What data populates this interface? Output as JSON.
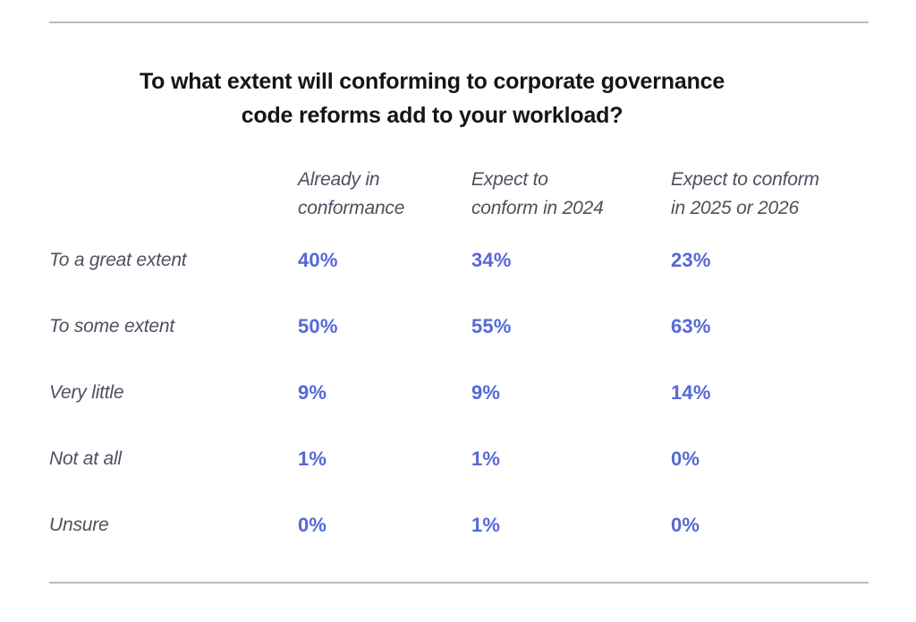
{
  "colors": {
    "accent": "#5568d6",
    "label_text": "#4b515e",
    "title_text": "#141519",
    "rule": "#b7bbc3",
    "background": "#ffffff"
  },
  "title": {
    "lines": [
      "To what extent will conforming to corporate governance",
      "code reforms add to your workload?"
    ]
  },
  "table": {
    "columns": [
      {
        "line1": "Already in",
        "line2": "conformance",
        "full": "Already in conformance"
      },
      {
        "line1": "Expect to",
        "line2": "conform in 2024",
        "full": "Expect to conform in 2024"
      },
      {
        "line1": "Expect to conform",
        "line2": "in 2025 or 2026",
        "full": "Expect to conform in 2025 or 2026"
      }
    ],
    "rows": [
      {
        "label": "To a great extent",
        "values": [
          "40%",
          "34%",
          "23%"
        ]
      },
      {
        "label": "To some extent",
        "values": [
          "50%",
          "55%",
          "63%"
        ]
      },
      {
        "label": "Very little",
        "values": [
          "9%",
          "9%",
          "14%"
        ]
      },
      {
        "label": "Not at all",
        "values": [
          "1%",
          "1%",
          "0%"
        ]
      },
      {
        "label": "Unsure",
        "values": [
          "0%",
          "1%",
          "0%"
        ]
      }
    ]
  },
  "chart_data": {
    "type": "table",
    "title": "To what extent will conforming to corporate governance code reforms add to your workload?",
    "categories": [
      "To a great extent",
      "To some extent",
      "Very little",
      "Not at all",
      "Unsure"
    ],
    "series": [
      {
        "name": "Already in conformance",
        "values": [
          40,
          50,
          9,
          1,
          0
        ]
      },
      {
        "name": "Expect to conform in 2024",
        "values": [
          34,
          55,
          9,
          1,
          1
        ]
      },
      {
        "name": "Expect to conform in 2025 or 2026",
        "values": [
          23,
          63,
          14,
          0,
          0
        ]
      }
    ],
    "value_unit": "%",
    "layout": {
      "grid": false,
      "value_color": "#5568d6",
      "label_style": "italic"
    }
  }
}
